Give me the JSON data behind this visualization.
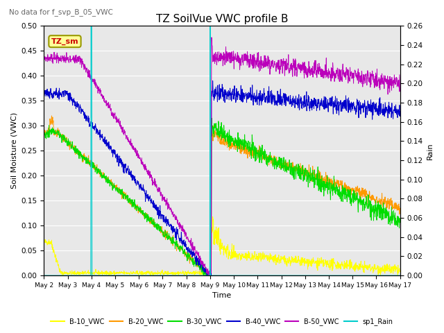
{
  "title": "TZ SoilVue VWC profile B",
  "subtitle": "No data for f_svp_B_05_VWC",
  "ylabel_left": "Soil Moisture (VWC)",
  "ylabel_right": "Rain",
  "xlabel": "Time",
  "ylim_left": [
    0.0,
    0.5
  ],
  "ylim_right": [
    0.0,
    0.26
  ],
  "bg_color": "#e8e8e8",
  "colors": {
    "B-10_VWC": "#ffff00",
    "B-20_VWC": "#ff9900",
    "B-30_VWC": "#00dd00",
    "B-40_VWC": "#0000cc",
    "B-50_VWC": "#bb00bb",
    "sp1_Rain": "#00cccc"
  },
  "legend_label": "TZ_sm",
  "annotation_color": "#cc0000",
  "annotation_bg": "#ffff99",
  "xtick_labels": [
    "May 2",
    "May 3",
    "May 4",
    "May 5",
    "May 6",
    "May 7",
    "May 8",
    "May 9",
    "May 10",
    "May 11",
    "May 12",
    "May 13",
    "May 14",
    "May 15",
    "May 16",
    "May 17"
  ],
  "yticks_left": [
    0.0,
    0.05,
    0.1,
    0.15,
    0.2,
    0.25,
    0.3,
    0.35,
    0.4,
    0.45,
    0.5
  ],
  "yticks_right": [
    0.0,
    0.02,
    0.04,
    0.06,
    0.08,
    0.1,
    0.12,
    0.14,
    0.16,
    0.18,
    0.2,
    0.22,
    0.24,
    0.26
  ]
}
